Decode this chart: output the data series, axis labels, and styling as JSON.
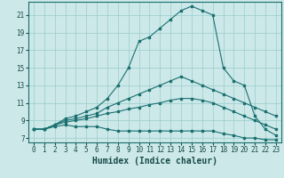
{
  "xlabel": "Humidex (Indice chaleur)",
  "xlim": [
    -0.5,
    23.5
  ],
  "ylim": [
    6.5,
    22.5
  ],
  "yticks": [
    7,
    9,
    11,
    13,
    15,
    17,
    19,
    21
  ],
  "xticks": [
    0,
    1,
    2,
    3,
    4,
    5,
    6,
    7,
    8,
    9,
    10,
    11,
    12,
    13,
    14,
    15,
    16,
    17,
    18,
    19,
    20,
    21,
    22,
    23
  ],
  "bg_color": "#cce8e8",
  "line_color": "#1a7070",
  "grid_color": "#99cccc",
  "lines": [
    {
      "x": [
        0,
        1,
        2,
        3,
        4,
        5,
        6,
        7,
        8,
        9,
        10,
        11,
        12,
        13,
        14,
        15,
        16,
        17,
        18,
        19,
        20,
        21,
        22,
        23
      ],
      "y": [
        8.0,
        8.0,
        8.3,
        8.5,
        8.3,
        8.3,
        8.3,
        8.0,
        7.8,
        7.8,
        7.8,
        7.8,
        7.8,
        7.8,
        7.8,
        7.8,
        7.8,
        7.8,
        7.5,
        7.3,
        7.0,
        7.0,
        6.8,
        6.8
      ]
    },
    {
      "x": [
        0,
        1,
        2,
        3,
        4,
        5,
        6,
        7,
        8,
        9,
        10,
        11,
        12,
        13,
        14,
        15,
        16,
        17,
        18,
        19,
        20,
        21,
        22,
        23
      ],
      "y": [
        8.0,
        8.0,
        8.5,
        8.8,
        9.0,
        9.2,
        9.5,
        9.8,
        10.0,
        10.3,
        10.5,
        10.8,
        11.0,
        11.3,
        11.5,
        11.5,
        11.3,
        11.0,
        10.5,
        10.0,
        9.5,
        9.0,
        8.5,
        8.0
      ]
    },
    {
      "x": [
        0,
        1,
        2,
        3,
        4,
        5,
        6,
        7,
        8,
        9,
        10,
        11,
        12,
        13,
        14,
        15,
        16,
        17,
        18,
        19,
        20,
        21,
        22,
        23
      ],
      "y": [
        8.0,
        8.0,
        8.5,
        9.0,
        9.2,
        9.5,
        9.8,
        10.5,
        11.0,
        11.5,
        12.0,
        12.5,
        13.0,
        13.5,
        14.0,
        13.5,
        13.0,
        12.5,
        12.0,
        11.5,
        11.0,
        10.5,
        10.0,
        9.5
      ]
    },
    {
      "x": [
        0,
        1,
        2,
        3,
        4,
        5,
        6,
        7,
        8,
        9,
        10,
        11,
        12,
        13,
        14,
        15,
        16,
        17,
        18,
        19,
        20,
        21,
        22,
        23
      ],
      "y": [
        8.0,
        8.0,
        8.5,
        9.2,
        9.5,
        10.0,
        10.5,
        11.5,
        13.0,
        15.0,
        18.0,
        18.5,
        19.5,
        20.5,
        21.5,
        22.0,
        21.5,
        21.0,
        15.0,
        13.5,
        13.0,
        9.5,
        8.0,
        7.3
      ]
    }
  ],
  "title_fontsize": 7,
  "xlabel_fontsize": 7,
  "tick_fontsize": 5.5
}
